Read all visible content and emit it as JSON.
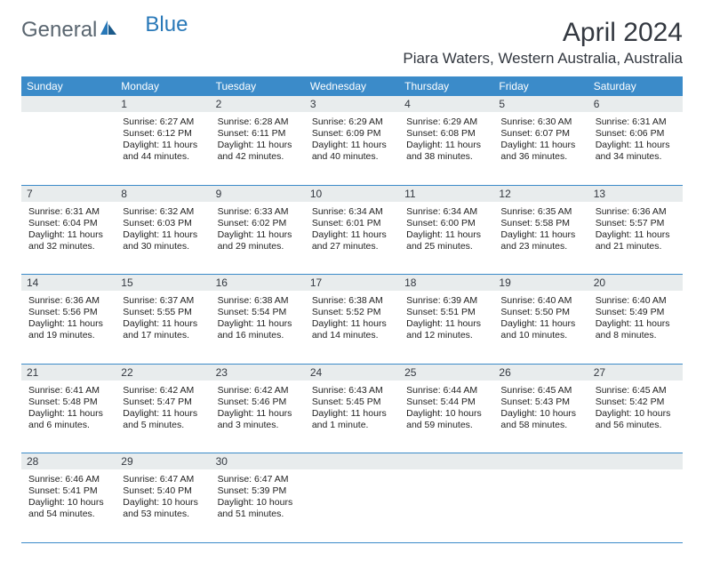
{
  "logo": {
    "text1": "General",
    "text2": "Blue"
  },
  "title": "April 2024",
  "location": "Piara Waters, Western Australia, Australia",
  "headers": [
    "Sunday",
    "Monday",
    "Tuesday",
    "Wednesday",
    "Thursday",
    "Friday",
    "Saturday"
  ],
  "colors": {
    "header_bg": "#3b8bc9",
    "header_text": "#ffffff",
    "daynum_bg": "#e8eced",
    "border": "#3b8bc9",
    "logo_gray": "#5a6670",
    "logo_blue": "#2878b8"
  },
  "weeks": [
    [
      {
        "day": "",
        "sunrise": "",
        "sunset": "",
        "daylight": ""
      },
      {
        "day": "1",
        "sunrise": "Sunrise: 6:27 AM",
        "sunset": "Sunset: 6:12 PM",
        "daylight": "Daylight: 11 hours and 44 minutes."
      },
      {
        "day": "2",
        "sunrise": "Sunrise: 6:28 AM",
        "sunset": "Sunset: 6:11 PM",
        "daylight": "Daylight: 11 hours and 42 minutes."
      },
      {
        "day": "3",
        "sunrise": "Sunrise: 6:29 AM",
        "sunset": "Sunset: 6:09 PM",
        "daylight": "Daylight: 11 hours and 40 minutes."
      },
      {
        "day": "4",
        "sunrise": "Sunrise: 6:29 AM",
        "sunset": "Sunset: 6:08 PM",
        "daylight": "Daylight: 11 hours and 38 minutes."
      },
      {
        "day": "5",
        "sunrise": "Sunrise: 6:30 AM",
        "sunset": "Sunset: 6:07 PM",
        "daylight": "Daylight: 11 hours and 36 minutes."
      },
      {
        "day": "6",
        "sunrise": "Sunrise: 6:31 AM",
        "sunset": "Sunset: 6:06 PM",
        "daylight": "Daylight: 11 hours and 34 minutes."
      }
    ],
    [
      {
        "day": "7",
        "sunrise": "Sunrise: 6:31 AM",
        "sunset": "Sunset: 6:04 PM",
        "daylight": "Daylight: 11 hours and 32 minutes."
      },
      {
        "day": "8",
        "sunrise": "Sunrise: 6:32 AM",
        "sunset": "Sunset: 6:03 PM",
        "daylight": "Daylight: 11 hours and 30 minutes."
      },
      {
        "day": "9",
        "sunrise": "Sunrise: 6:33 AM",
        "sunset": "Sunset: 6:02 PM",
        "daylight": "Daylight: 11 hours and 29 minutes."
      },
      {
        "day": "10",
        "sunrise": "Sunrise: 6:34 AM",
        "sunset": "Sunset: 6:01 PM",
        "daylight": "Daylight: 11 hours and 27 minutes."
      },
      {
        "day": "11",
        "sunrise": "Sunrise: 6:34 AM",
        "sunset": "Sunset: 6:00 PM",
        "daylight": "Daylight: 11 hours and 25 minutes."
      },
      {
        "day": "12",
        "sunrise": "Sunrise: 6:35 AM",
        "sunset": "Sunset: 5:58 PM",
        "daylight": "Daylight: 11 hours and 23 minutes."
      },
      {
        "day": "13",
        "sunrise": "Sunrise: 6:36 AM",
        "sunset": "Sunset: 5:57 PM",
        "daylight": "Daylight: 11 hours and 21 minutes."
      }
    ],
    [
      {
        "day": "14",
        "sunrise": "Sunrise: 6:36 AM",
        "sunset": "Sunset: 5:56 PM",
        "daylight": "Daylight: 11 hours and 19 minutes."
      },
      {
        "day": "15",
        "sunrise": "Sunrise: 6:37 AM",
        "sunset": "Sunset: 5:55 PM",
        "daylight": "Daylight: 11 hours and 17 minutes."
      },
      {
        "day": "16",
        "sunrise": "Sunrise: 6:38 AM",
        "sunset": "Sunset: 5:54 PM",
        "daylight": "Daylight: 11 hours and 16 minutes."
      },
      {
        "day": "17",
        "sunrise": "Sunrise: 6:38 AM",
        "sunset": "Sunset: 5:52 PM",
        "daylight": "Daylight: 11 hours and 14 minutes."
      },
      {
        "day": "18",
        "sunrise": "Sunrise: 6:39 AM",
        "sunset": "Sunset: 5:51 PM",
        "daylight": "Daylight: 11 hours and 12 minutes."
      },
      {
        "day": "19",
        "sunrise": "Sunrise: 6:40 AM",
        "sunset": "Sunset: 5:50 PM",
        "daylight": "Daylight: 11 hours and 10 minutes."
      },
      {
        "day": "20",
        "sunrise": "Sunrise: 6:40 AM",
        "sunset": "Sunset: 5:49 PM",
        "daylight": "Daylight: 11 hours and 8 minutes."
      }
    ],
    [
      {
        "day": "21",
        "sunrise": "Sunrise: 6:41 AM",
        "sunset": "Sunset: 5:48 PM",
        "daylight": "Daylight: 11 hours and 6 minutes."
      },
      {
        "day": "22",
        "sunrise": "Sunrise: 6:42 AM",
        "sunset": "Sunset: 5:47 PM",
        "daylight": "Daylight: 11 hours and 5 minutes."
      },
      {
        "day": "23",
        "sunrise": "Sunrise: 6:42 AM",
        "sunset": "Sunset: 5:46 PM",
        "daylight": "Daylight: 11 hours and 3 minutes."
      },
      {
        "day": "24",
        "sunrise": "Sunrise: 6:43 AM",
        "sunset": "Sunset: 5:45 PM",
        "daylight": "Daylight: 11 hours and 1 minute."
      },
      {
        "day": "25",
        "sunrise": "Sunrise: 6:44 AM",
        "sunset": "Sunset: 5:44 PM",
        "daylight": "Daylight: 10 hours and 59 minutes."
      },
      {
        "day": "26",
        "sunrise": "Sunrise: 6:45 AM",
        "sunset": "Sunset: 5:43 PM",
        "daylight": "Daylight: 10 hours and 58 minutes."
      },
      {
        "day": "27",
        "sunrise": "Sunrise: 6:45 AM",
        "sunset": "Sunset: 5:42 PM",
        "daylight": "Daylight: 10 hours and 56 minutes."
      }
    ],
    [
      {
        "day": "28",
        "sunrise": "Sunrise: 6:46 AM",
        "sunset": "Sunset: 5:41 PM",
        "daylight": "Daylight: 10 hours and 54 minutes."
      },
      {
        "day": "29",
        "sunrise": "Sunrise: 6:47 AM",
        "sunset": "Sunset: 5:40 PM",
        "daylight": "Daylight: 10 hours and 53 minutes."
      },
      {
        "day": "30",
        "sunrise": "Sunrise: 6:47 AM",
        "sunset": "Sunset: 5:39 PM",
        "daylight": "Daylight: 10 hours and 51 minutes."
      },
      {
        "day": "",
        "sunrise": "",
        "sunset": "",
        "daylight": ""
      },
      {
        "day": "",
        "sunrise": "",
        "sunset": "",
        "daylight": ""
      },
      {
        "day": "",
        "sunrise": "",
        "sunset": "",
        "daylight": ""
      },
      {
        "day": "",
        "sunrise": "",
        "sunset": "",
        "daylight": ""
      }
    ]
  ]
}
